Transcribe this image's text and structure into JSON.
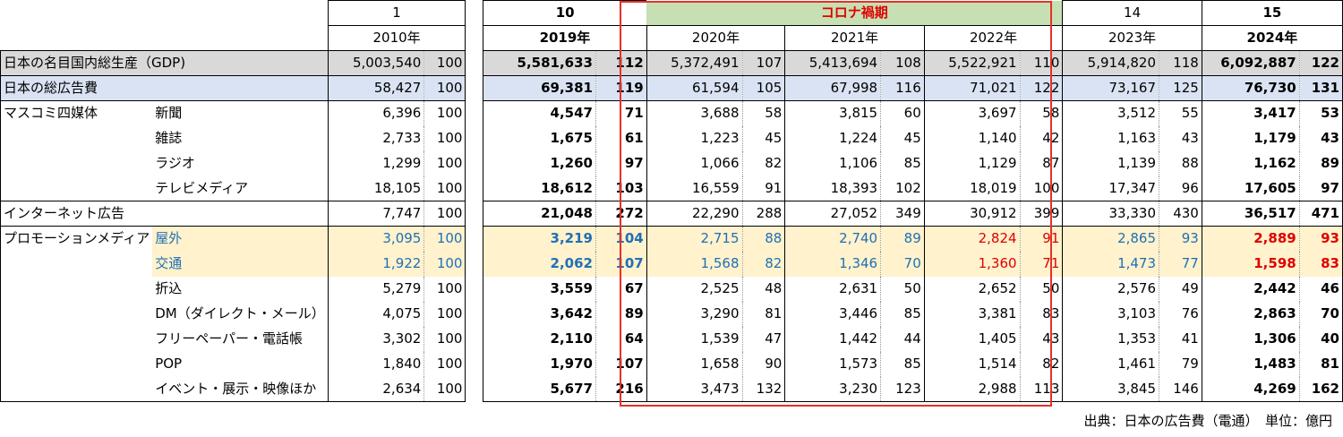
{
  "header": {
    "num_row": [
      "1",
      "10",
      "コロナ禍期",
      "14",
      "15"
    ],
    "years": [
      "2010年",
      "2019年",
      "2020年",
      "2021年",
      "2022年",
      "2023年",
      "2024年"
    ]
  },
  "rows": [
    {
      "cat": "日本の名目国内総生産（GDP)",
      "sub": "",
      "v": [
        [
          "5,003,540",
          "100"
        ],
        [
          "5,581,633",
          "112"
        ],
        [
          "5,372,491",
          "107"
        ],
        [
          "5,413,694",
          "108"
        ],
        [
          "5,522,921",
          "110"
        ],
        [
          "5,914,820",
          "118"
        ],
        [
          "6,092,887",
          "122"
        ]
      ],
      "style": "gdp"
    },
    {
      "cat": "日本の総広告費",
      "sub": "",
      "v": [
        [
          "58,427",
          "100"
        ],
        [
          "69,381",
          "119"
        ],
        [
          "61,594",
          "105"
        ],
        [
          "67,998",
          "116"
        ],
        [
          "71,021",
          "122"
        ],
        [
          "73,167",
          "125"
        ],
        [
          "76,730",
          "131"
        ]
      ],
      "style": "tot"
    },
    {
      "cat": "マスコミ四媒体",
      "sub": "新聞",
      "v": [
        [
          "6,396",
          "100"
        ],
        [
          "4,547",
          "71"
        ],
        [
          "3,688",
          "58"
        ],
        [
          "3,815",
          "60"
        ],
        [
          "3,697",
          "58"
        ],
        [
          "3,512",
          "55"
        ],
        [
          "3,417",
          "53"
        ]
      ],
      "style": ""
    },
    {
      "cat": "",
      "sub": "雑誌",
      "v": [
        [
          "2,733",
          "100"
        ],
        [
          "1,675",
          "61"
        ],
        [
          "1,223",
          "45"
        ],
        [
          "1,224",
          "45"
        ],
        [
          "1,140",
          "42"
        ],
        [
          "1,163",
          "43"
        ],
        [
          "1,179",
          "43"
        ]
      ],
      "style": ""
    },
    {
      "cat": "",
      "sub": "ラジオ",
      "v": [
        [
          "1,299",
          "100"
        ],
        [
          "1,260",
          "97"
        ],
        [
          "1,066",
          "82"
        ],
        [
          "1,106",
          "85"
        ],
        [
          "1,129",
          "87"
        ],
        [
          "1,139",
          "88"
        ],
        [
          "1,162",
          "89"
        ]
      ],
      "style": ""
    },
    {
      "cat": "",
      "sub": "テレビメディア",
      "v": [
        [
          "18,105",
          "100"
        ],
        [
          "18,612",
          "103"
        ],
        [
          "16,559",
          "91"
        ],
        [
          "18,393",
          "102"
        ],
        [
          "18,019",
          "100"
        ],
        [
          "17,347",
          "96"
        ],
        [
          "17,605",
          "97"
        ]
      ],
      "style": ""
    },
    {
      "cat": "インターネット広告",
      "sub": "",
      "v": [
        [
          "7,747",
          "100"
        ],
        [
          "21,048",
          "272"
        ],
        [
          "22,290",
          "288"
        ],
        [
          "27,052",
          "349"
        ],
        [
          "30,912",
          "399"
        ],
        [
          "33,330",
          "430"
        ],
        [
          "36,517",
          "471"
        ]
      ],
      "style": ""
    },
    {
      "cat": "プロモーションメディア",
      "sub": "屋外",
      "v": [
        [
          "3,095",
          "100"
        ],
        [
          "3,219",
          "104"
        ],
        [
          "2,715",
          "88"
        ],
        [
          "2,740",
          "89"
        ],
        [
          "2,824",
          "91"
        ],
        [
          "2,865",
          "93"
        ],
        [
          "2,889",
          "93"
        ]
      ],
      "style": "pro"
    },
    {
      "cat": "",
      "sub": "交通",
      "v": [
        [
          "1,922",
          "100"
        ],
        [
          "2,062",
          "107"
        ],
        [
          "1,568",
          "82"
        ],
        [
          "1,346",
          "70"
        ],
        [
          "1,360",
          "71"
        ],
        [
          "1,473",
          "77"
        ],
        [
          "1,598",
          "83"
        ]
      ],
      "style": "pro"
    },
    {
      "cat": "",
      "sub": "折込",
      "v": [
        [
          "5,279",
          "100"
        ],
        [
          "3,559",
          "67"
        ],
        [
          "2,525",
          "48"
        ],
        [
          "2,631",
          "50"
        ],
        [
          "2,652",
          "50"
        ],
        [
          "2,576",
          "49"
        ],
        [
          "2,442",
          "46"
        ]
      ],
      "style": ""
    },
    {
      "cat": "",
      "sub": "DM（ダイレクト・メール）",
      "v": [
        [
          "4,075",
          "100"
        ],
        [
          "3,642",
          "89"
        ],
        [
          "3,290",
          "81"
        ],
        [
          "3,446",
          "85"
        ],
        [
          "3,381",
          "83"
        ],
        [
          "3,103",
          "76"
        ],
        [
          "2,863",
          "70"
        ]
      ],
      "style": ""
    },
    {
      "cat": "",
      "sub": "フリーペーパー・電話帳",
      "v": [
        [
          "3,302",
          "100"
        ],
        [
          "2,110",
          "64"
        ],
        [
          "1,539",
          "47"
        ],
        [
          "1,442",
          "44"
        ],
        [
          "1,405",
          "43"
        ],
        [
          "1,353",
          "41"
        ],
        [
          "1,306",
          "40"
        ]
      ],
      "style": ""
    },
    {
      "cat": "",
      "sub": "POP",
      "v": [
        [
          "1,840",
          "100"
        ],
        [
          "1,970",
          "107"
        ],
        [
          "1,658",
          "90"
        ],
        [
          "1,573",
          "85"
        ],
        [
          "1,514",
          "82"
        ],
        [
          "1,461",
          "79"
        ],
        [
          "1,483",
          "81"
        ]
      ],
      "style": ""
    },
    {
      "cat": "",
      "sub": "イベント・展示・映像ほか",
      "v": [
        [
          "2,634",
          "100"
        ],
        [
          "5,677",
          "216"
        ],
        [
          "3,473",
          "132"
        ],
        [
          "3,230",
          "123"
        ],
        [
          "2,988",
          "113"
        ],
        [
          "3,845",
          "146"
        ],
        [
          "4,269",
          "162"
        ]
      ],
      "style": ""
    }
  ],
  "source": "出典：日本の広告費（電通）　単位：億円",
  "colors": {
    "blue": "#1f6fb8",
    "red": "#e00000",
    "gdp": "#d9d9d9",
    "total": "#dae3f3",
    "promo": "#fff2cc",
    "corona_head": "#c6e0b4"
  }
}
